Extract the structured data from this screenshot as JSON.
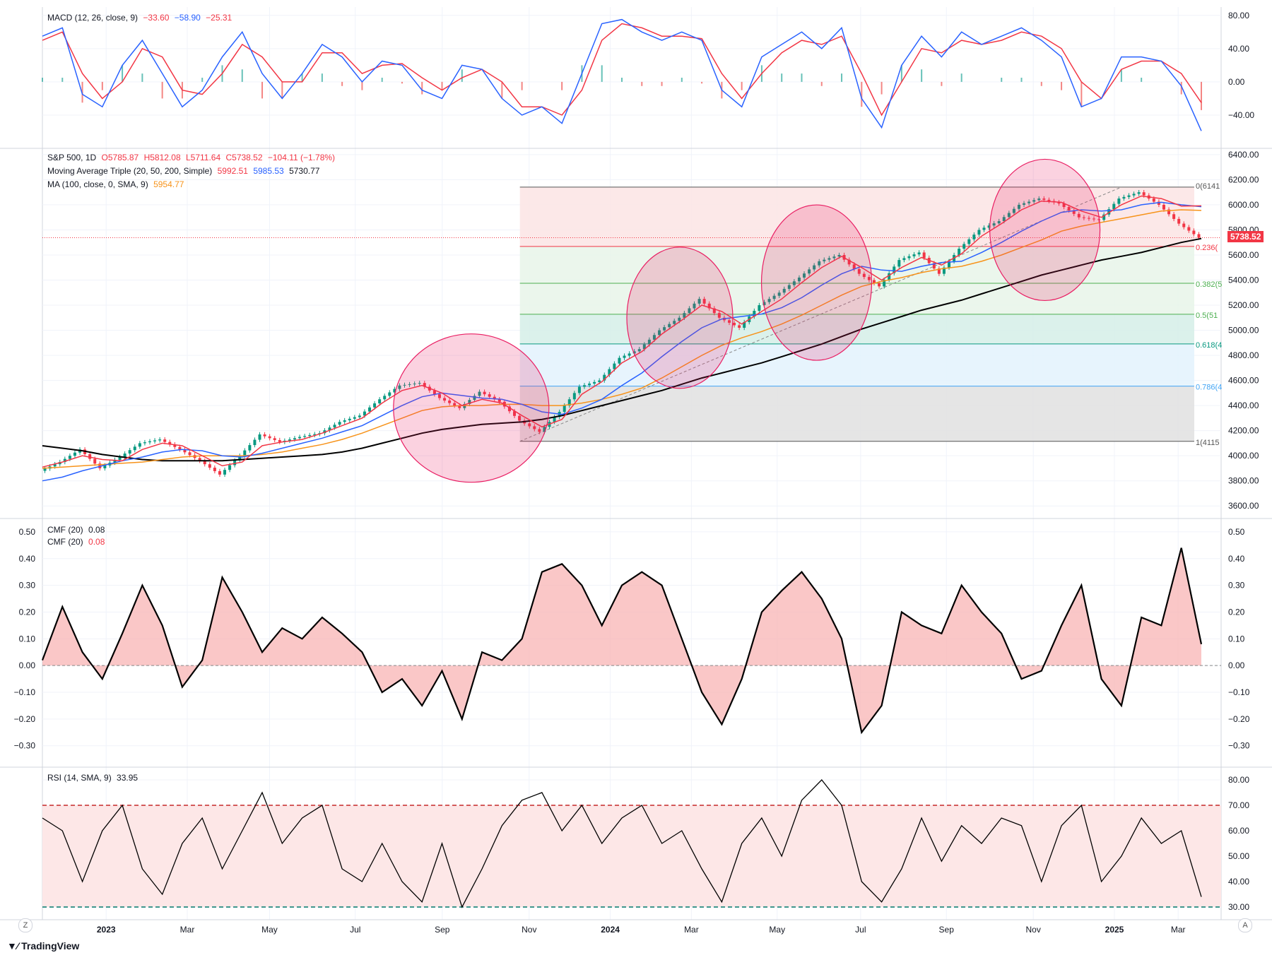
{
  "window": {
    "brand": "TradingView",
    "left_corner_btn": "Z",
    "right_corner_btn": "A"
  },
  "colors": {
    "ma20": "#f23645",
    "ma50": "#2962ff",
    "ma200": "#000000",
    "ma100": "#f7931a",
    "macd": "#2962ff",
    "signal": "#f23645",
    "cmf": "#000000",
    "rsi": "#000000",
    "circle": "#e91e63"
  },
  "legend": {
    "macd": {
      "label": "MACD (12, 26, close, 9)",
      "v1": "−33.60",
      "v2": "−58.90",
      "v3": "−25.31"
    },
    "price": {
      "symbol": "S&P 500, 1D",
      "o": "O5785.87",
      "h": "H5812.08",
      "l": "L5711.64",
      "c": "C5738.52",
      "chg": "−104.11 (−1.78%)"
    },
    "mat": {
      "label": "Moving Average Triple (20, 50, 200, Simple)",
      "v1": "5992.51",
      "v2": "5985.53",
      "v3": "5730.77"
    },
    "ma100": {
      "label": "MA (100, close, 0, SMA, 9)",
      "v1": "5954.77"
    },
    "cmf1": {
      "label": "CMF (20)",
      "v": "0.08"
    },
    "cmf2": {
      "label": "CMF (20)",
      "v": "0.08"
    },
    "rsi": {
      "label": "RSI (14, SMA, 9)",
      "v": "33.95"
    }
  },
  "last_price_tag": "5738.52",
  "chart_data": {
    "type": "line",
    "x_ticks": [
      "2023",
      "Mar",
      "May",
      "Jul",
      "Sep",
      "Nov",
      "2024",
      "Mar",
      "May",
      "Jul",
      "Sep",
      "Nov",
      "2025",
      "Mar"
    ],
    "x_tick_pos": [
      0.055,
      0.125,
      0.196,
      0.27,
      0.345,
      0.42,
      0.49,
      0.56,
      0.634,
      0.706,
      0.78,
      0.855,
      0.925,
      0.98
    ],
    "macd_axis": [
      "80.00",
      "40.00",
      "0.00",
      "−40.00"
    ],
    "macd_axis_vals": [
      80,
      40,
      0,
      -40
    ],
    "price_axis": [
      "6400.00",
      "6200.00",
      "6000.00",
      "5800.00",
      "5600.00",
      "5400.00",
      "5200.00",
      "5000.00",
      "4800.00",
      "4600.00",
      "4400.00",
      "4200.00",
      "4000.00",
      "3800.00",
      "3600.00"
    ],
    "price_axis_vals": [
      6400,
      6200,
      6000,
      5800,
      5600,
      5400,
      5200,
      5000,
      4800,
      4600,
      4400,
      4200,
      4000,
      3800,
      3600
    ],
    "cmf_axis": [
      "0.50",
      "0.40",
      "0.30",
      "0.20",
      "0.10",
      "0.00",
      "−0.10",
      "−0.20",
      "−0.30"
    ],
    "cmf_axis_vals": [
      0.5,
      0.4,
      0.3,
      0.2,
      0.1,
      0,
      -0.1,
      -0.2,
      -0.3
    ],
    "rsi_axis": [
      "80.00",
      "70.00",
      "60.00",
      "50.00",
      "40.00",
      "30.00"
    ],
    "rsi_axis_vals": [
      80,
      70,
      60,
      50,
      40,
      30
    ],
    "fib_levels": [
      {
        "label": "0(6141",
        "value": 6141,
        "fill": "#fce4e4"
      },
      {
        "label": "0.236(",
        "value": 5668,
        "fill": "#e8f5e9"
      },
      {
        "label": "0.382(5",
        "value": 5375,
        "fill": "#e8f5e9"
      },
      {
        "label": "0.5(51",
        "value": 5128,
        "fill": "#d5efe8"
      },
      {
        "label": "0.618(4",
        "value": 4891,
        "fill": "#e3f2fd"
      },
      {
        "label": "0.786(4",
        "value": 4555,
        "fill": "#e0e0e0"
      },
      {
        "label": "1(4115",
        "value": 4115,
        "fill": "#e0e0e0"
      }
    ],
    "price_close": [
      3880,
      3950,
      4050,
      3900,
      3990,
      4100,
      4130,
      4050,
      3960,
      3850,
      4000,
      4170,
      4110,
      4150,
      4180,
      4270,
      4320,
      4450,
      4560,
      4580,
      4460,
      4380,
      4510,
      4430,
      4280,
      4190,
      4350,
      4550,
      4600,
      4780,
      4850,
      5000,
      5100,
      5250,
      5100,
      5020,
      5200,
      5300,
      5420,
      5550,
      5600,
      5450,
      5350,
      5560,
      5620,
      5450,
      5650,
      5800,
      5870,
      6000,
      6050,
      6010,
      5900,
      5880,
      6050,
      6100,
      6000,
      5850,
      5738
    ],
    "ma20": [
      3910,
      3950,
      4000,
      3970,
      3960,
      4050,
      4100,
      4080,
      4000,
      3920,
      3950,
      4080,
      4110,
      4130,
      4180,
      4240,
      4300,
      4420,
      4520,
      4560,
      4500,
      4400,
      4450,
      4420,
      4320,
      4230,
      4290,
      4490,
      4590,
      4740,
      4830,
      4970,
      5080,
      5200,
      5150,
      5050,
      5150,
      5250,
      5380,
      5500,
      5590,
      5500,
      5400,
      5500,
      5580,
      5520,
      5610,
      5750,
      5850,
      5960,
      6030,
      6020,
      5950,
      5900,
      6000,
      6070,
      6050,
      5990,
      5992
    ],
    "ma50": [
      3800,
      3830,
      3880,
      3920,
      3960,
      3990,
      4030,
      4050,
      4040,
      4000,
      3990,
      4020,
      4060,
      4100,
      4140,
      4190,
      4240,
      4320,
      4400,
      4470,
      4500,
      4480,
      4460,
      4450,
      4410,
      4350,
      4330,
      4380,
      4450,
      4560,
      4660,
      4790,
      4910,
      5020,
      5090,
      5110,
      5130,
      5180,
      5260,
      5360,
      5450,
      5510,
      5480,
      5470,
      5510,
      5540,
      5550,
      5620,
      5700,
      5790,
      5870,
      5940,
      5960,
      5950,
      5960,
      6000,
      6020,
      6000,
      5985
    ],
    "ma100": [
      3900,
      3910,
      3920,
      3930,
      3940,
      3950,
      3970,
      3990,
      4000,
      4000,
      4000,
      4010,
      4030,
      4060,
      4090,
      4130,
      4180,
      4240,
      4300,
      4360,
      4390,
      4400,
      4400,
      4410,
      4410,
      4400,
      4400,
      4420,
      4450,
      4490,
      4540,
      4620,
      4710,
      4800,
      4880,
      4940,
      4990,
      5050,
      5120,
      5200,
      5280,
      5350,
      5390,
      5420,
      5460,
      5490,
      5510,
      5550,
      5600,
      5660,
      5720,
      5790,
      5830,
      5860,
      5890,
      5920,
      5950,
      5960,
      5955
    ],
    "ma200": [
      4080,
      4060,
      4040,
      4010,
      3990,
      3970,
      3960,
      3960,
      3960,
      3960,
      3970,
      3980,
      3990,
      4000,
      4010,
      4030,
      4060,
      4100,
      4140,
      4180,
      4210,
      4230,
      4250,
      4260,
      4270,
      4290,
      4320,
      4360,
      4400,
      4440,
      4480,
      4520,
      4570,
      4620,
      4660,
      4700,
      4740,
      4790,
      4840,
      4890,
      4950,
      5010,
      5060,
      5110,
      5160,
      5200,
      5240,
      5290,
      5340,
      5390,
      5440,
      5480,
      5520,
      5560,
      5590,
      5620,
      5660,
      5700,
      5731
    ],
    "macd": [
      55,
      65,
      -15,
      -30,
      20,
      50,
      10,
      -30,
      -10,
      30,
      60,
      10,
      -20,
      10,
      45,
      30,
      0,
      25,
      20,
      -10,
      -20,
      20,
      15,
      -20,
      -40,
      -30,
      -50,
      10,
      70,
      75,
      60,
      50,
      60,
      50,
      -10,
      -30,
      30,
      45,
      60,
      40,
      65,
      -20,
      -55,
      20,
      55,
      30,
      60,
      45,
      55,
      65,
      50,
      30,
      -30,
      -20,
      30,
      30,
      25,
      -5,
      -59
    ],
    "signal": [
      50,
      60,
      10,
      -20,
      0,
      40,
      30,
      -10,
      -15,
      10,
      45,
      30,
      0,
      0,
      35,
      35,
      10,
      20,
      22,
      5,
      -10,
      5,
      15,
      0,
      -30,
      -30,
      -40,
      -10,
      50,
      70,
      65,
      55,
      55,
      52,
      10,
      -20,
      10,
      35,
      50,
      45,
      55,
      10,
      -40,
      0,
      40,
      35,
      50,
      45,
      50,
      60,
      55,
      40,
      0,
      -20,
      15,
      25,
      25,
      10,
      -25
    ],
    "cmf": [
      0.02,
      0.22,
      0.05,
      -0.05,
      0.12,
      0.3,
      0.15,
      -0.08,
      0.02,
      0.33,
      0.2,
      0.05,
      0.14,
      0.1,
      0.18,
      0.12,
      0.05,
      -0.1,
      -0.05,
      -0.15,
      -0.02,
      -0.2,
      0.05,
      0.02,
      0.1,
      0.35,
      0.38,
      0.3,
      0.15,
      0.3,
      0.35,
      0.3,
      0.1,
      -0.1,
      -0.22,
      -0.05,
      0.2,
      0.28,
      0.35,
      0.25,
      0.1,
      -0.25,
      -0.15,
      0.2,
      0.15,
      0.12,
      0.3,
      0.2,
      0.12,
      -0.05,
      -0.02,
      0.15,
      0.3,
      -0.05,
      -0.15,
      0.18,
      0.15,
      0.44,
      0.08
    ],
    "rsi": [
      65,
      60,
      40,
      60,
      70,
      45,
      35,
      55,
      65,
      45,
      60,
      75,
      55,
      65,
      70,
      45,
      40,
      55,
      40,
      32,
      55,
      30,
      45,
      62,
      72,
      75,
      60,
      70,
      55,
      65,
      70,
      55,
      60,
      45,
      32,
      55,
      65,
      50,
      72,
      80,
      70,
      40,
      32,
      45,
      65,
      48,
      62,
      55,
      65,
      62,
      40,
      62,
      70,
      40,
      50,
      65,
      55,
      60,
      34
    ]
  }
}
